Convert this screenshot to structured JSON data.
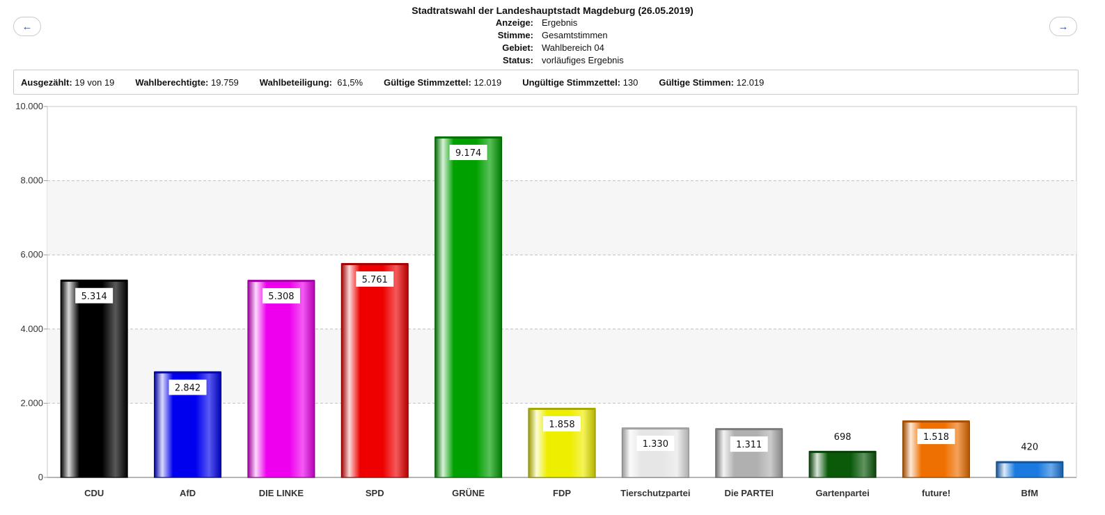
{
  "nav": {
    "prev_label": "←",
    "next_label": "→"
  },
  "header": {
    "title": "Stadtratswahl der Landeshauptstadt Magdeburg (26.05.2019)",
    "rows": [
      {
        "label": "Anzeige:",
        "value": "Ergebnis"
      },
      {
        "label": "Stimme:",
        "value": "Gesamtstimmen"
      },
      {
        "label": "Gebiet:",
        "value": "Wahlbereich 04"
      },
      {
        "label": "Status:",
        "value": "vorläufiges Ergebnis"
      }
    ]
  },
  "stats": [
    {
      "label": "Ausgezählt:",
      "value": "19 von 19"
    },
    {
      "label": "Wahlberechtigte:",
      "value": "19.759"
    },
    {
      "label": "Wahlbeteiligung:",
      "value": "61,5%"
    },
    {
      "label": "Gültige Stimmzettel:",
      "value": "12.019"
    },
    {
      "label": "Ungültige Stimmzettel:",
      "value": "130"
    },
    {
      "label": "Gültige Stimmen:",
      "value": "12.019"
    }
  ],
  "chart_data": {
    "type": "bar",
    "title": "",
    "xlabel": "",
    "ylabel": "",
    "ylim": [
      0,
      10000
    ],
    "yticks": [
      0,
      2000,
      4000,
      6000,
      8000,
      10000
    ],
    "ytick_labels": [
      "0",
      "2.000",
      "4.000",
      "6.000",
      "8.000",
      "10.000"
    ],
    "grid": true,
    "categories": [
      "CDU",
      "AfD",
      "DIE LINKE",
      "SPD",
      "GRÜNE",
      "FDP",
      "Tierschutzpartei",
      "Die PARTEI",
      "Gartenpartei",
      "future!",
      "BfM"
    ],
    "values": [
      5314,
      2842,
      5308,
      5761,
      9174,
      1858,
      1330,
      1311,
      698,
      1518,
      420
    ],
    "value_labels": [
      "5.314",
      "2.842",
      "5.308",
      "5.761",
      "9.174",
      "1.858",
      "1.330",
      "1.311",
      "698",
      "1.518",
      "420"
    ],
    "colors": [
      "#000000",
      "#0000ee",
      "#ee00ee",
      "#ee0000",
      "#00a000",
      "#eeee00",
      "#e6e6e6",
      "#b0b0b0",
      "#0a5a0a",
      "#ee7000",
      "#1a7ae0"
    ]
  }
}
